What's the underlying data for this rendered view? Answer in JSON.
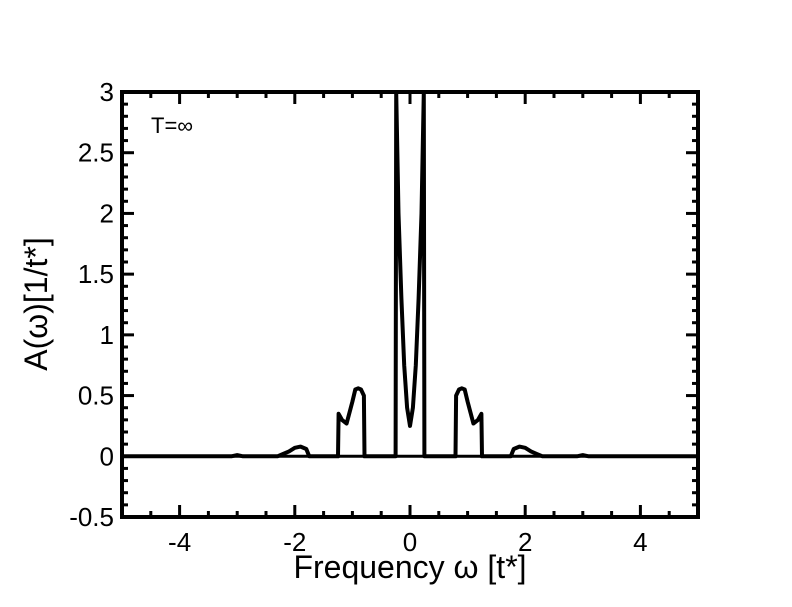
{
  "chart_data": {
    "type": "line",
    "title": "",
    "xlabel": "Frequency ω [t*]",
    "ylabel": "A(ω)[1/t*]",
    "annotation": "T=∞",
    "xlim": [
      -5,
      5
    ],
    "ylim": [
      -0.5,
      3
    ],
    "xticks": [
      -4,
      -2,
      0,
      2,
      4
    ],
    "xtick_labels": [
      "-4",
      "-2",
      "0",
      "2",
      "4"
    ],
    "yticks": [
      -0.5,
      0,
      0.5,
      1,
      1.5,
      2,
      2.5,
      3
    ],
    "ytick_labels": [
      "-0.5",
      "0",
      "0.5",
      "1",
      "1.5",
      "2",
      "2.5",
      "3"
    ],
    "grid": false,
    "series": [
      {
        "color": "#000000",
        "x": [
          -5,
          -3.1,
          -3.0,
          -2.9,
          -2.3,
          -2.2,
          -2.1,
          -2.0,
          -1.9,
          -1.8,
          -1.75,
          -1.25,
          -1.24,
          -1.18,
          -1.1,
          -1.0,
          -0.95,
          -0.9,
          -0.85,
          -0.8,
          -0.79,
          -0.25,
          -0.24,
          -0.2,
          -0.15,
          -0.1,
          -0.05,
          0,
          0.05,
          0.1,
          0.15,
          0.2,
          0.24,
          0.25,
          0.79,
          0.8,
          0.85,
          0.9,
          0.95,
          1.0,
          1.1,
          1.18,
          1.24,
          1.25,
          1.75,
          1.8,
          1.9,
          2.0,
          2.1,
          2.2,
          2.3,
          2.9,
          3.0,
          3.1,
          5
        ],
        "y": [
          0,
          0,
          0.01,
          0,
          0,
          0.02,
          0.04,
          0.07,
          0.08,
          0.06,
          0,
          0,
          0.35,
          0.3,
          0.27,
          0.45,
          0.55,
          0.56,
          0.55,
          0.5,
          0,
          0,
          3.0,
          2.0,
          1.3,
          0.75,
          0.4,
          0.25,
          0.4,
          0.75,
          1.3,
          2.0,
          3.0,
          0,
          0,
          0.5,
          0.55,
          0.56,
          0.55,
          0.45,
          0.27,
          0.3,
          0.35,
          0,
          0,
          0.06,
          0.08,
          0.07,
          0.04,
          0.02,
          0,
          0,
          0.01,
          0,
          0
        ]
      }
    ]
  }
}
